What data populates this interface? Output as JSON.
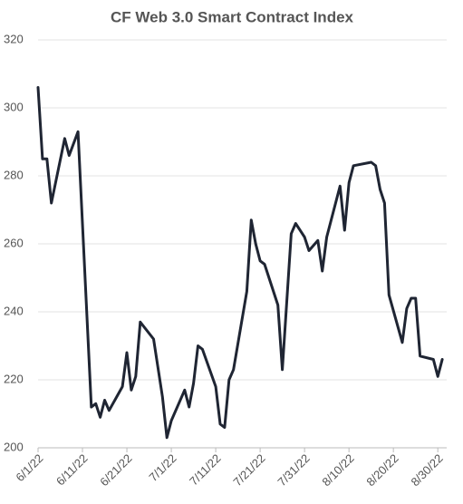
{
  "chart_data": {
    "type": "line",
    "title": "CF Web 3.0 Smart Contract Index",
    "x": [
      "2022-06-01",
      "2022-06-02",
      "2022-06-03",
      "2022-06-04",
      "2022-06-07",
      "2022-06-08",
      "2022-06-10",
      "2022-06-13",
      "2022-06-14",
      "2022-06-15",
      "2022-06-16",
      "2022-06-17",
      "2022-06-20",
      "2022-06-21",
      "2022-06-22",
      "2022-06-23",
      "2022-06-24",
      "2022-06-27",
      "2022-06-29",
      "2022-06-30",
      "2022-07-01",
      "2022-07-04",
      "2022-07-05",
      "2022-07-06",
      "2022-07-07",
      "2022-07-08",
      "2022-07-11",
      "2022-07-12",
      "2022-07-13",
      "2022-07-14",
      "2022-07-15",
      "2022-07-18",
      "2022-07-19",
      "2022-07-20",
      "2022-07-21",
      "2022-07-22",
      "2022-07-25",
      "2022-07-26",
      "2022-07-28",
      "2022-07-29",
      "2022-07-31",
      "2022-08-01",
      "2022-08-03",
      "2022-08-04",
      "2022-08-05",
      "2022-08-08",
      "2022-08-09",
      "2022-08-10",
      "2022-08-11",
      "2022-08-15",
      "2022-08-16",
      "2022-08-17",
      "2022-08-18",
      "2022-08-19",
      "2022-08-22",
      "2022-08-23",
      "2022-08-24",
      "2022-08-25",
      "2022-08-26",
      "2022-08-29",
      "2022-08-30",
      "2022-08-31"
    ],
    "series": [
      {
        "name": "CF Web 3.0 Smart Contract Index",
        "color": "#1f2533",
        "values": [
          306,
          285,
          285,
          272,
          291,
          286,
          293,
          212,
          213,
          209,
          214,
          211,
          218,
          228,
          217,
          221,
          237,
          232,
          215,
          203,
          208,
          217,
          212,
          219,
          230,
          229,
          218,
          207,
          206,
          220,
          223,
          246,
          267,
          260,
          255,
          254,
          242,
          223,
          263,
          266,
          262,
          258,
          261,
          252,
          262,
          277,
          264,
          278,
          283,
          284,
          283,
          276,
          272,
          245,
          231,
          241,
          244,
          244,
          227,
          226,
          221,
          226
        ]
      }
    ],
    "xlim": [
      "2022-06-01",
      "2022-09-01"
    ],
    "xticks": [
      {
        "value": "2022-06-01",
        "label": "6/1/22"
      },
      {
        "value": "2022-06-11",
        "label": "6/11/22"
      },
      {
        "value": "2022-06-21",
        "label": "6/21/22"
      },
      {
        "value": "2022-07-01",
        "label": "7/1/22"
      },
      {
        "value": "2022-07-11",
        "label": "7/11/22"
      },
      {
        "value": "2022-07-21",
        "label": "7/21/22"
      },
      {
        "value": "2022-07-31",
        "label": "7/31/22"
      },
      {
        "value": "2022-08-10",
        "label": "8/10/22"
      },
      {
        "value": "2022-08-20",
        "label": "8/20/22"
      },
      {
        "value": "2022-08-30",
        "label": "8/30/22"
      }
    ],
    "ylim": [
      200,
      320
    ],
    "yticks": [
      200,
      220,
      240,
      260,
      280,
      300,
      320
    ],
    "grid": true
  }
}
